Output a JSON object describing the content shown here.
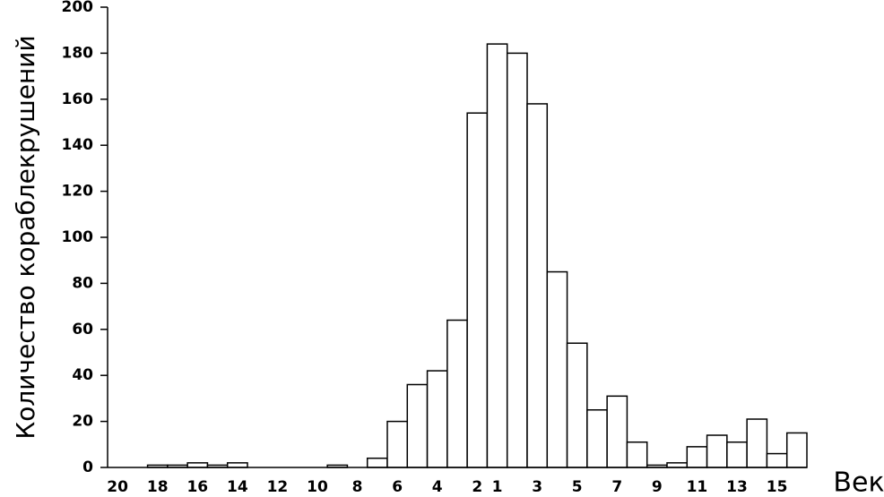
{
  "chart_data": {
    "type": "bar",
    "x_label": "Век",
    "y_label": "Количество кораблекрушений",
    "categories": [
      "20",
      null,
      "18",
      null,
      "16",
      null,
      "14",
      null,
      "12",
      null,
      "10",
      null,
      "8",
      null,
      "6",
      null,
      "4",
      null,
      "2",
      "1",
      null,
      "3",
      null,
      "5",
      null,
      "7",
      null,
      "9",
      null,
      "11",
      null,
      "13",
      null,
      "15",
      null
    ],
    "values": [
      0,
      0,
      1,
      1,
      2,
      1,
      2,
      0,
      0,
      0,
      0,
      1,
      0,
      4,
      20,
      36,
      42,
      64,
      154,
      184,
      180,
      158,
      85,
      54,
      25,
      31,
      11,
      1,
      2,
      9,
      14,
      11,
      21,
      6,
      15
    ],
    "color": "#ffffff",
    "ylim": [
      0,
      200
    ],
    "yticks": [
      0,
      20,
      40,
      60,
      80,
      100,
      120,
      140,
      160,
      180,
      200
    ],
    "grid": false
  }
}
